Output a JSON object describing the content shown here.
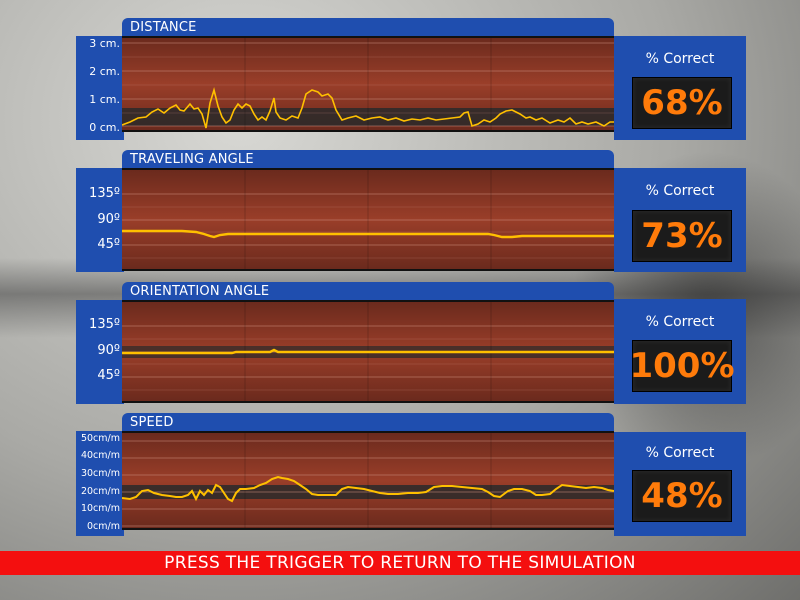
{
  "panels": [
    {
      "title": "DISTANCE",
      "ticks": [
        "3 cm.",
        "2 cm.",
        "1 cm.",
        "0 cm."
      ],
      "score_label": "% Correct",
      "score_value": "68%",
      "line_color": "#ffc000"
    },
    {
      "title": "TRAVELING ANGLE",
      "ticks": [
        "135º",
        "90º",
        "45º"
      ],
      "score_label": "% Correct",
      "score_value": "73%",
      "line_color": "#ffc000"
    },
    {
      "title": "ORIENTATION ANGLE",
      "ticks": [
        "135º",
        "90º",
        "45º"
      ],
      "score_label": "% Correct",
      "score_value": "100%",
      "line_color": "#ffc000"
    },
    {
      "title": "SPEED",
      "ticks": [
        "50cm/m",
        "40cm/m",
        "30cm/m",
        "20cm/m",
        "10cm/m",
        "0cm/m"
      ],
      "score_label": "% Correct",
      "score_value": "48%",
      "line_color": "#ffc000"
    }
  ],
  "footer": {
    "instruction": "PRESS THE TRIGGER TO RETURN TO THE SIMULATION"
  },
  "colors": {
    "panel_blue": "#1f4eaf",
    "plot_red": "#8e3725",
    "score_orange": "#ff7b0a",
    "footer_red": "#f40f0f"
  }
}
